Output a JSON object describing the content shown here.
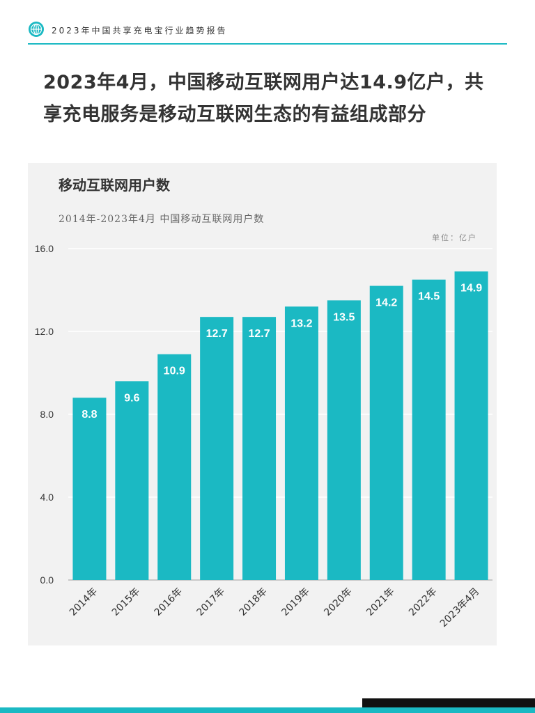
{
  "header": {
    "report_title": "2023年中国共享充电宝行业趋势报告",
    "logo_icon": "globe-icon"
  },
  "headline": "2023年4月，中国移动互联网用户达14.9亿户，共享充电服务是移动互联网生态的有益组成部分",
  "colors": {
    "accent": "#1BB9C3",
    "panel_bg": "#F2F2F2",
    "text": "#333333"
  },
  "chart_data": {
    "type": "bar",
    "title": "移动互联网用户数",
    "subtitle": "2014年-2023年4月 中国移动互联网用户数",
    "unit_label": "单位：亿户",
    "categories": [
      "2014年",
      "2015年",
      "2016年",
      "2017年",
      "2018年",
      "2019年",
      "2020年",
      "2021年",
      "2022年",
      "2023年4月"
    ],
    "values": [
      8.8,
      9.6,
      10.9,
      12.7,
      12.7,
      13.2,
      13.5,
      14.2,
      14.5,
      14.9
    ],
    "value_labels": [
      "8.8",
      "9.6",
      "10.9",
      "12.7",
      "12.7",
      "13.2",
      "13.5",
      "14.2",
      "14.5",
      "14.9"
    ],
    "ylim": [
      0,
      16
    ],
    "yticks": [
      "0.0",
      "4.0",
      "8.0",
      "12.0",
      "16.0"
    ],
    "ytick_values": [
      0,
      4,
      8,
      12,
      16
    ],
    "grid": true,
    "bar_color": "#1BB9C3"
  }
}
